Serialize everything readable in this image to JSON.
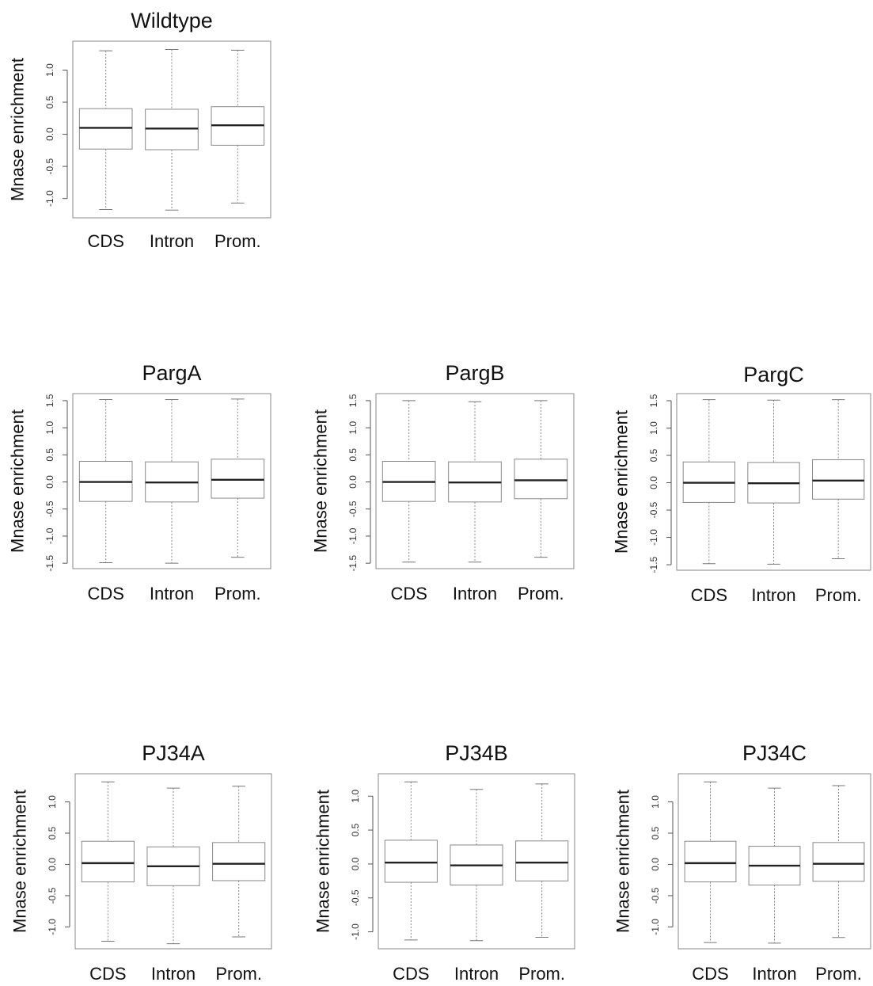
{
  "chart_data": [
    {
      "type": "boxplot",
      "title": "Wildtype",
      "ylabel": "Mnase enrichment",
      "categories": [
        "CDS",
        "Intron",
        "Prom."
      ],
      "yticks": [
        "-1.0",
        "-0.5",
        "0.0",
        "0.5",
        "1.0"
      ],
      "ylim": [
        -1.3,
        1.45
      ],
      "boxes": [
        {
          "min": -1.17,
          "q1": -0.23,
          "median": 0.1,
          "q3": 0.4,
          "max": 1.3
        },
        {
          "min": -1.18,
          "q1": -0.24,
          "median": 0.09,
          "q3": 0.39,
          "max": 1.32
        },
        {
          "min": -1.07,
          "q1": -0.17,
          "median": 0.14,
          "q3": 0.43,
          "max": 1.31
        }
      ]
    },
    {
      "type": "boxplot",
      "title": "PargA",
      "ylabel": "Mnase enrichment",
      "categories": [
        "CDS",
        "Intron",
        "Prom."
      ],
      "yticks": [
        "-1.5",
        "-1.0",
        "-0.5",
        "0.0",
        "0.5",
        "1.0",
        "1.5"
      ],
      "ylim": [
        -1.6,
        1.63
      ],
      "boxes": [
        {
          "min": -1.49,
          "q1": -0.36,
          "median": 0.0,
          "q3": 0.38,
          "max": 1.52
        },
        {
          "min": -1.5,
          "q1": -0.37,
          "median": -0.01,
          "q3": 0.37,
          "max": 1.52
        },
        {
          "min": -1.39,
          "q1": -0.3,
          "median": 0.04,
          "q3": 0.42,
          "max": 1.53
        }
      ]
    },
    {
      "type": "boxplot",
      "title": "PargB",
      "ylabel": "Mnase enrichment",
      "categories": [
        "CDS",
        "Intron",
        "Prom."
      ],
      "yticks": [
        "-1.5",
        "-1.0",
        "-0.5",
        "0.0",
        "0.5",
        "1.0",
        "1.5"
      ],
      "ylim": [
        -1.6,
        1.63
      ],
      "boxes": [
        {
          "min": -1.48,
          "q1": -0.36,
          "median": 0.0,
          "q3": 0.38,
          "max": 1.5
        },
        {
          "min": -1.48,
          "q1": -0.37,
          "median": -0.01,
          "q3": 0.37,
          "max": 1.48
        },
        {
          "min": -1.39,
          "q1": -0.31,
          "median": 0.03,
          "q3": 0.42,
          "max": 1.5
        }
      ]
    },
    {
      "type": "boxplot",
      "title": "PargC",
      "ylabel": "Mnase enrichment",
      "categories": [
        "CDS",
        "Intron",
        "Prom."
      ],
      "yticks": [
        "-1.5",
        "-1.0",
        "-0.5",
        "0.0",
        "0.5",
        "1.0",
        "1.5"
      ],
      "ylim": [
        -1.6,
        1.63
      ],
      "boxes": [
        {
          "min": -1.48,
          "q1": -0.36,
          "median": 0.0,
          "q3": 0.38,
          "max": 1.52
        },
        {
          "min": -1.49,
          "q1": -0.37,
          "median": -0.01,
          "q3": 0.37,
          "max": 1.51
        },
        {
          "min": -1.39,
          "q1": -0.3,
          "median": 0.04,
          "q3": 0.42,
          "max": 1.52
        }
      ]
    },
    {
      "type": "boxplot",
      "title": "PJ34A",
      "ylabel": "Mnase enrichment",
      "categories": [
        "CDS",
        "Intron",
        "Prom."
      ],
      "yticks": [
        "-1.0",
        "-0.5",
        "0.0",
        "0.5",
        "1.0"
      ],
      "ylim": [
        -1.35,
        1.45
      ],
      "boxes": [
        {
          "min": -1.23,
          "q1": -0.28,
          "median": 0.02,
          "q3": 0.37,
          "max": 1.32
        },
        {
          "min": -1.27,
          "q1": -0.34,
          "median": -0.03,
          "q3": 0.28,
          "max": 1.22
        },
        {
          "min": -1.16,
          "q1": -0.26,
          "median": 0.01,
          "q3": 0.35,
          "max": 1.25
        }
      ]
    },
    {
      "type": "boxplot",
      "title": "PJ34B",
      "ylabel": "Mnase enrichment",
      "categories": [
        "CDS",
        "Intron",
        "Prom."
      ],
      "yticks": [
        "-1.0",
        "-0.5",
        "0.0",
        "0.5",
        "1.0"
      ],
      "ylim": [
        -1.25,
        1.33
      ],
      "boxes": [
        {
          "min": -1.12,
          "q1": -0.27,
          "median": 0.02,
          "q3": 0.35,
          "max": 1.21
        },
        {
          "min": -1.13,
          "q1": -0.31,
          "median": -0.02,
          "q3": 0.28,
          "max": 1.1
        },
        {
          "min": -1.08,
          "q1": -0.25,
          "median": 0.02,
          "q3": 0.34,
          "max": 1.18
        }
      ]
    },
    {
      "type": "boxplot",
      "title": "PJ34C",
      "ylabel": "Mnase enrichment",
      "categories": [
        "CDS",
        "Intron",
        "Prom."
      ],
      "yticks": [
        "-1.0",
        "-0.5",
        "0.0",
        "0.5",
        "1.0"
      ],
      "ylim": [
        -1.35,
        1.45
      ],
      "boxes": [
        {
          "min": -1.25,
          "q1": -0.28,
          "median": 0.02,
          "q3": 0.37,
          "max": 1.32
        },
        {
          "min": -1.26,
          "q1": -0.33,
          "median": -0.02,
          "q3": 0.29,
          "max": 1.22
        },
        {
          "min": -1.17,
          "q1": -0.27,
          "median": 0.01,
          "q3": 0.35,
          "max": 1.26
        }
      ]
    }
  ]
}
